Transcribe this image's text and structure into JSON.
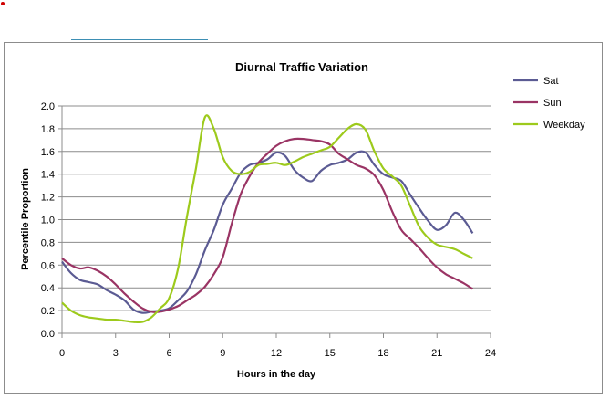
{
  "chart_data": {
    "type": "line",
    "title": "Diurnal Traffic Variation",
    "xlabel": "Hours in the day",
    "ylabel": "Percentile Proportion",
    "xlim": [
      0,
      24
    ],
    "ylim": [
      0,
      2.0
    ],
    "xticks": [
      0,
      3,
      6,
      9,
      12,
      15,
      18,
      21,
      24
    ],
    "yticks": [
      0.0,
      0.2,
      0.4,
      0.6,
      0.8,
      1.0,
      1.2,
      1.4,
      1.6,
      1.8,
      2.0
    ],
    "ytick_labels": [
      "0.0",
      "0.2",
      "0.4",
      "0.6",
      "0.8",
      "1.0",
      "1.2",
      "1.4",
      "1.6",
      "1.8",
      "2.0"
    ],
    "grid": "horizontal",
    "legend_position": "right",
    "series": [
      {
        "name": "Sat",
        "color": "#5b5b93",
        "x": [
          0,
          0.5,
          1,
          1.5,
          2,
          2.5,
          3,
          3.5,
          4,
          4.5,
          5,
          5.5,
          6,
          6.5,
          7,
          7.5,
          8,
          8.5,
          9,
          9.5,
          10,
          10.5,
          11,
          11.5,
          12,
          12.5,
          13,
          13.5,
          14,
          14.5,
          15,
          15.5,
          16,
          16.5,
          17,
          17.5,
          18,
          18.5,
          19,
          19.5,
          20,
          20.5,
          21,
          21.5,
          22,
          22.5,
          23
        ],
        "y": [
          0.63,
          0.53,
          0.47,
          0.45,
          0.43,
          0.38,
          0.34,
          0.29,
          0.21,
          0.18,
          0.19,
          0.2,
          0.22,
          0.29,
          0.37,
          0.52,
          0.73,
          0.91,
          1.13,
          1.27,
          1.41,
          1.48,
          1.5,
          1.53,
          1.59,
          1.56,
          1.44,
          1.37,
          1.34,
          1.43,
          1.48,
          1.5,
          1.53,
          1.59,
          1.59,
          1.48,
          1.4,
          1.37,
          1.34,
          1.22,
          1.1,
          0.99,
          0.91,
          0.95,
          1.06,
          1.0,
          0.88
        ]
      },
      {
        "name": "Sun",
        "color": "#9a3464",
        "x": [
          0,
          0.5,
          1,
          1.5,
          2,
          2.5,
          3,
          3.5,
          4,
          4.5,
          5,
          5.5,
          6,
          6.5,
          7,
          7.5,
          8,
          8.5,
          9,
          9.5,
          10,
          10.5,
          11,
          11.5,
          12,
          12.5,
          13,
          13.5,
          14,
          14.5,
          15,
          15.5,
          16,
          16.5,
          17,
          17.5,
          18,
          18.5,
          19,
          19.5,
          20,
          20.5,
          21,
          21.5,
          22,
          22.5,
          23
        ],
        "y": [
          0.66,
          0.6,
          0.57,
          0.58,
          0.55,
          0.5,
          0.43,
          0.35,
          0.28,
          0.22,
          0.19,
          0.19,
          0.21,
          0.24,
          0.29,
          0.34,
          0.41,
          0.52,
          0.67,
          0.96,
          1.22,
          1.38,
          1.5,
          1.58,
          1.65,
          1.69,
          1.71,
          1.71,
          1.7,
          1.69,
          1.66,
          1.58,
          1.53,
          1.48,
          1.45,
          1.39,
          1.26,
          1.07,
          0.91,
          0.83,
          0.75,
          0.66,
          0.58,
          0.52,
          0.48,
          0.44,
          0.39
        ]
      },
      {
        "name": "Weekday",
        "color": "#9dca1c",
        "x": [
          0,
          0.5,
          1,
          1.5,
          2,
          2.5,
          3,
          3.5,
          4,
          4.5,
          5,
          5.5,
          6,
          6.5,
          7,
          7.5,
          8,
          8.5,
          9,
          9.5,
          10,
          10.5,
          11,
          11.5,
          12,
          12.5,
          13,
          13.5,
          14,
          14.5,
          15,
          15.5,
          16,
          16.5,
          17,
          17.5,
          18,
          18.5,
          19,
          19.5,
          20,
          20.5,
          21,
          21.5,
          22,
          22.5,
          23
        ],
        "y": [
          0.27,
          0.2,
          0.16,
          0.14,
          0.13,
          0.12,
          0.12,
          0.11,
          0.1,
          0.1,
          0.14,
          0.22,
          0.31,
          0.57,
          1.03,
          1.45,
          1.9,
          1.8,
          1.55,
          1.43,
          1.4,
          1.42,
          1.48,
          1.49,
          1.5,
          1.48,
          1.51,
          1.55,
          1.58,
          1.61,
          1.64,
          1.72,
          1.8,
          1.84,
          1.79,
          1.6,
          1.45,
          1.38,
          1.3,
          1.12,
          0.94,
          0.84,
          0.78,
          0.76,
          0.74,
          0.7,
          0.66
        ]
      }
    ]
  }
}
